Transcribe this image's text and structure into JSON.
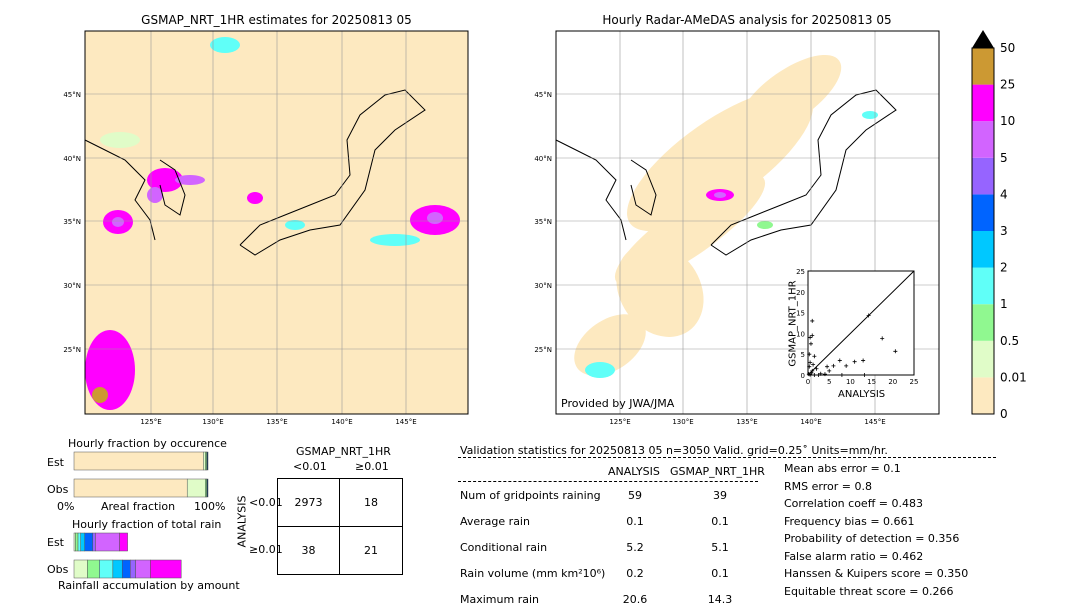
{
  "left_map": {
    "title": "GSMAP_NRT_1HR estimates for 20250813 05",
    "lon_ticks": [
      "125°E",
      "130°E",
      "135°E",
      "140°E",
      "145°E"
    ],
    "lat_ticks": [
      "45°N",
      "40°N",
      "35°N",
      "30°N",
      "25°N"
    ]
  },
  "right_map": {
    "title": "Hourly Radar-AMeDAS analysis for 20250813 05",
    "credit": "Provided by JWA/JMA",
    "lon_ticks": [
      "125°E",
      "130°E",
      "135°E",
      "140°E",
      "145°E"
    ],
    "lat_ticks": [
      "45°N",
      "40°N",
      "35°N",
      "30°N",
      "25°N"
    ]
  },
  "colorbar": {
    "labels": [
      "0",
      "0.01",
      "0.5",
      "1",
      "2",
      "3",
      "4",
      "5",
      "10",
      "25",
      "50"
    ],
    "colors": [
      "#fde9c0",
      "#e0fcc8",
      "#90f890",
      "#60fff8",
      "#00c8ff",
      "#0064ff",
      "#9664ff",
      "#d264ff",
      "#ff00ff",
      "#cc9933"
    ],
    "extend_color": "#000000"
  },
  "chart_data": [
    {
      "type": "scatter",
      "title": "",
      "xlabel": "ANALYSIS",
      "ylabel": "GSMAP_NRT_1HR",
      "xlim": [
        0,
        25
      ],
      "ylim": [
        0,
        25
      ],
      "ticks": [
        "0",
        "5",
        "10",
        "15",
        "20",
        "25"
      ],
      "points": [
        [
          0.2,
          0.2
        ],
        [
          0.5,
          0.1
        ],
        [
          0.8,
          0.5
        ],
        [
          1,
          1
        ],
        [
          0.3,
          2
        ],
        [
          0.5,
          3
        ],
        [
          1,
          13
        ],
        [
          1,
          9.5
        ],
        [
          0.5,
          9
        ],
        [
          0.7,
          7.5
        ],
        [
          0.3,
          5
        ],
        [
          1.5,
          4.5
        ],
        [
          2,
          1.5
        ],
        [
          1.2,
          2.5
        ],
        [
          3,
          0.3
        ],
        [
          4,
          0.2
        ],
        [
          5,
          1
        ],
        [
          4.5,
          2
        ],
        [
          6,
          2.2
        ],
        [
          7.5,
          3.5
        ],
        [
          9,
          2.2
        ],
        [
          11,
          3.2
        ],
        [
          13,
          3.5
        ],
        [
          14.3,
          14.3
        ],
        [
          17.5,
          8.8
        ],
        [
          20.6,
          5.7
        ],
        [
          13.3,
          0
        ],
        [
          8,
          0
        ],
        [
          2.5,
          0
        ],
        [
          1.5,
          0
        ]
      ]
    },
    {
      "type": "bar",
      "title": "Hourly fraction by occurence",
      "xlabel": "Areal fraction",
      "x_ticks": [
        "0%",
        "100%"
      ],
      "categories": [
        "Est",
        "Obs"
      ],
      "series": [
        {
          "values_percent": [
            96.5,
            84.5
          ]
        },
        {
          "values_percent": [
            1.5,
            13.5
          ]
        },
        {
          "values_percent": [
            1,
            1
          ]
        },
        {
          "values_percent": [
            1,
            1
          ]
        }
      ]
    },
    {
      "type": "bar",
      "title": "Hourly fraction of total rain",
      "xlabel": "Rainfall accumulation by amount",
      "categories": [
        "Est",
        "Obs"
      ],
      "est_segments": [
        1,
        2,
        2,
        3,
        6,
        2,
        18,
        6
      ],
      "obs_segments": [
        10,
        9,
        10,
        7,
        6,
        4,
        11,
        23
      ]
    },
    {
      "type": "table",
      "title": "GSMAP_NRT_1HR",
      "ylabel": "ANALYSIS",
      "col_labels": [
        "<0.01",
        "≥0.01"
      ],
      "row_labels": [
        "<0.01",
        "≥0.01"
      ],
      "cells": [
        [
          "2973",
          "18"
        ],
        [
          "38",
          "21"
        ]
      ]
    }
  ],
  "stats": {
    "header": "Validation statistics for 20250813 05  n=3050 Valid. grid=0.25˚ Units=mm/hr.",
    "col_analysis": "ANALYSIS",
    "col_gsmap": "GSMAP_NRT_1HR",
    "rows": [
      {
        "label": "Num of gridpoints raining",
        "a": "59",
        "g": "39"
      },
      {
        "label": "Average rain",
        "a": "0.1",
        "g": "0.1"
      },
      {
        "label": "Conditional rain",
        "a": "5.2",
        "g": "5.1"
      },
      {
        "label": "Rain volume (mm km²10⁶)",
        "a": "0.2",
        "g": "0.1"
      },
      {
        "label": "Maximum rain",
        "a": "20.6",
        "g": "14.3"
      }
    ],
    "scores": [
      "Mean abs error =    0.1",
      "RMS error =    0.8",
      "Correlation coeff =  0.483",
      "Frequency bias =  0.661",
      "Probability of detection =  0.356",
      "False alarm ratio =  0.462",
      "Hanssen & Kuipers score =  0.350",
      "Equitable threat score =  0.266"
    ]
  }
}
